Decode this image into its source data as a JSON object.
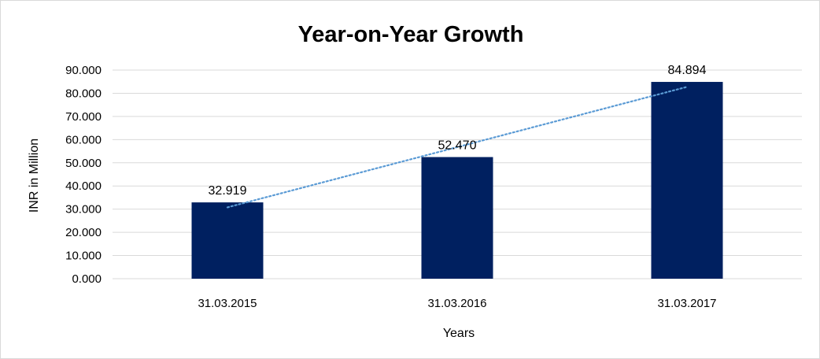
{
  "chart_data": {
    "type": "bar",
    "title": "Year-on-Year Growth",
    "xlabel": "Years",
    "ylabel": "INR in Million",
    "categories": [
      "31.03.2015",
      "31.03.2016",
      "31.03.2017"
    ],
    "values": [
      32.919,
      52.47,
      84.894
    ],
    "value_labels": [
      "32.919",
      "52.470",
      "84.894"
    ],
    "ylim": [
      0,
      90
    ],
    "y_ticks": [
      0,
      10,
      20,
      30,
      40,
      50,
      60,
      70,
      80,
      90
    ],
    "y_tick_labels": [
      "0.000",
      "10.000",
      "20.000",
      "30.000",
      "40.000",
      "50.000",
      "60.000",
      "70.000",
      "80.000",
      "90.000"
    ],
    "grid": true,
    "legend": "none",
    "trendline": {
      "type": "linear",
      "style": "dotted",
      "color": "#5b9bd5"
    },
    "colors": {
      "bar": "#002060",
      "grid": "#d9d9d9",
      "axis": "#d9d9d9"
    }
  }
}
